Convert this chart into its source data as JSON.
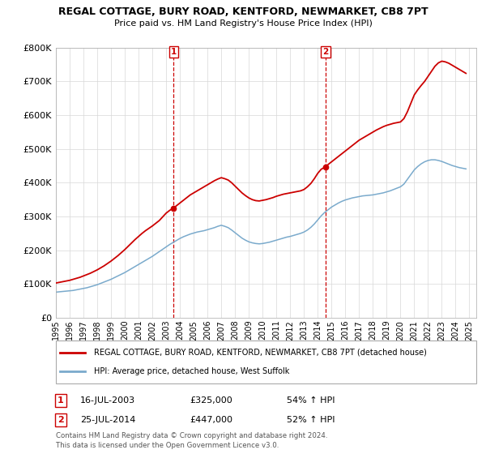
{
  "title": "REGAL COTTAGE, BURY ROAD, KENTFORD, NEWMARKET, CB8 7PT",
  "subtitle": "Price paid vs. HM Land Registry's House Price Index (HPI)",
  "legend_line1": "REGAL COTTAGE, BURY ROAD, KENTFORD, NEWMARKET, CB8 7PT (detached house)",
  "legend_line2": "HPI: Average price, detached house, West Suffolk",
  "footer1": "Contains HM Land Registry data © Crown copyright and database right 2024.",
  "footer2": "This data is licensed under the Open Government Licence v3.0.",
  "sale1_label": "1",
  "sale1_date": "16-JUL-2003",
  "sale1_price": "£325,000",
  "sale1_hpi": "54% ↑ HPI",
  "sale1_x": 2003.54,
  "sale1_y": 325000,
  "sale2_label": "2",
  "sale2_date": "25-JUL-2014",
  "sale2_price": "£447,000",
  "sale2_hpi": "52% ↑ HPI",
  "sale2_x": 2014.56,
  "sale2_y": 447000,
  "red_color": "#cc0000",
  "blue_color": "#7aaacc",
  "ylim": [
    0,
    800000
  ],
  "xlim": [
    1995.0,
    2025.5
  ],
  "yticks": [
    0,
    100000,
    200000,
    300000,
    400000,
    500000,
    600000,
    700000,
    800000
  ],
  "xticks": [
    1995,
    1996,
    1997,
    1998,
    1999,
    2000,
    2001,
    2002,
    2003,
    2004,
    2005,
    2006,
    2007,
    2008,
    2009,
    2010,
    2011,
    2012,
    2013,
    2014,
    2015,
    2016,
    2017,
    2018,
    2019,
    2020,
    2021,
    2022,
    2023,
    2024,
    2025
  ],
  "red_x": [
    1995.0,
    1995.25,
    1995.5,
    1995.75,
    1996.0,
    1996.25,
    1996.5,
    1996.75,
    1997.0,
    1997.25,
    1997.5,
    1997.75,
    1998.0,
    1998.25,
    1998.5,
    1998.75,
    1999.0,
    1999.25,
    1999.5,
    1999.75,
    2000.0,
    2000.25,
    2000.5,
    2000.75,
    2001.0,
    2001.25,
    2001.5,
    2001.75,
    2002.0,
    2002.25,
    2002.5,
    2002.75,
    2003.0,
    2003.25,
    2003.54,
    2003.75,
    2004.0,
    2004.25,
    2004.5,
    2004.75,
    2005.0,
    2005.25,
    2005.5,
    2005.75,
    2006.0,
    2006.25,
    2006.5,
    2006.75,
    2007.0,
    2007.25,
    2007.5,
    2007.75,
    2008.0,
    2008.25,
    2008.5,
    2008.75,
    2009.0,
    2009.25,
    2009.5,
    2009.75,
    2010.0,
    2010.25,
    2010.5,
    2010.75,
    2011.0,
    2011.25,
    2011.5,
    2011.75,
    2012.0,
    2012.25,
    2012.5,
    2012.75,
    2013.0,
    2013.25,
    2013.5,
    2013.75,
    2014.0,
    2014.25,
    2014.56,
    2014.75,
    2015.0,
    2015.25,
    2015.5,
    2015.75,
    2016.0,
    2016.25,
    2016.5,
    2016.75,
    2017.0,
    2017.25,
    2017.5,
    2017.75,
    2018.0,
    2018.25,
    2018.5,
    2018.75,
    2019.0,
    2019.25,
    2019.5,
    2019.75,
    2020.0,
    2020.25,
    2020.5,
    2020.75,
    2021.0,
    2021.25,
    2021.5,
    2021.75,
    2022.0,
    2022.25,
    2022.5,
    2022.75,
    2023.0,
    2023.25,
    2023.5,
    2023.75,
    2024.0,
    2024.25,
    2024.5,
    2024.75
  ],
  "red_y": [
    103000,
    105000,
    107000,
    109000,
    111000,
    114000,
    117000,
    120000,
    124000,
    128000,
    132000,
    137000,
    142000,
    148000,
    154000,
    161000,
    168000,
    176000,
    184000,
    193000,
    202000,
    212000,
    222000,
    232000,
    241000,
    250000,
    258000,
    265000,
    272000,
    280000,
    288000,
    299000,
    310000,
    318000,
    325000,
    332000,
    340000,
    348000,
    356000,
    364000,
    370000,
    376000,
    382000,
    388000,
    394000,
    400000,
    406000,
    411000,
    415000,
    412000,
    408000,
    400000,
    390000,
    380000,
    370000,
    362000,
    355000,
    350000,
    347000,
    346000,
    348000,
    350000,
    353000,
    356000,
    360000,
    363000,
    366000,
    368000,
    370000,
    372000,
    374000,
    376000,
    380000,
    388000,
    398000,
    412000,
    428000,
    440000,
    447000,
    454000,
    462000,
    470000,
    478000,
    486000,
    494000,
    502000,
    510000,
    518000,
    526000,
    532000,
    538000,
    544000,
    550000,
    556000,
    561000,
    566000,
    570000,
    573000,
    576000,
    578000,
    580000,
    590000,
    610000,
    635000,
    660000,
    675000,
    688000,
    700000,
    715000,
    730000,
    745000,
    755000,
    760000,
    758000,
    754000,
    748000,
    742000,
    736000,
    730000,
    724000
  ],
  "blue_x": [
    1995.0,
    1995.25,
    1995.5,
    1995.75,
    1996.0,
    1996.25,
    1996.5,
    1996.75,
    1997.0,
    1997.25,
    1997.5,
    1997.75,
    1998.0,
    1998.25,
    1998.5,
    1998.75,
    1999.0,
    1999.25,
    1999.5,
    1999.75,
    2000.0,
    2000.25,
    2000.5,
    2000.75,
    2001.0,
    2001.25,
    2001.5,
    2001.75,
    2002.0,
    2002.25,
    2002.5,
    2002.75,
    2003.0,
    2003.25,
    2003.5,
    2003.75,
    2004.0,
    2004.25,
    2004.5,
    2004.75,
    2005.0,
    2005.25,
    2005.5,
    2005.75,
    2006.0,
    2006.25,
    2006.5,
    2006.75,
    2007.0,
    2007.25,
    2007.5,
    2007.75,
    2008.0,
    2008.25,
    2008.5,
    2008.75,
    2009.0,
    2009.25,
    2009.5,
    2009.75,
    2010.0,
    2010.25,
    2010.5,
    2010.75,
    2011.0,
    2011.25,
    2011.5,
    2011.75,
    2012.0,
    2012.25,
    2012.5,
    2012.75,
    2013.0,
    2013.25,
    2013.5,
    2013.75,
    2014.0,
    2014.25,
    2014.5,
    2014.75,
    2015.0,
    2015.25,
    2015.5,
    2015.75,
    2016.0,
    2016.25,
    2016.5,
    2016.75,
    2017.0,
    2017.25,
    2017.5,
    2017.75,
    2018.0,
    2018.25,
    2018.5,
    2018.75,
    2019.0,
    2019.25,
    2019.5,
    2019.75,
    2020.0,
    2020.25,
    2020.5,
    2020.75,
    2021.0,
    2021.25,
    2021.5,
    2021.75,
    2022.0,
    2022.25,
    2022.5,
    2022.75,
    2023.0,
    2023.25,
    2023.5,
    2023.75,
    2024.0,
    2024.25,
    2024.5,
    2024.75
  ],
  "blue_y": [
    76000,
    77000,
    78000,
    79000,
    80000,
    81000,
    83000,
    85000,
    87000,
    89000,
    92000,
    95000,
    98000,
    102000,
    106000,
    110000,
    114000,
    119000,
    124000,
    129000,
    134000,
    140000,
    146000,
    152000,
    158000,
    164000,
    170000,
    176000,
    182000,
    189000,
    196000,
    203000,
    210000,
    217000,
    223000,
    229000,
    235000,
    240000,
    244000,
    248000,
    251000,
    254000,
    256000,
    258000,
    261000,
    264000,
    267000,
    271000,
    274000,
    271000,
    267000,
    260000,
    252000,
    244000,
    236000,
    230000,
    225000,
    222000,
    220000,
    219000,
    220000,
    222000,
    224000,
    227000,
    230000,
    233000,
    236000,
    239000,
    241000,
    244000,
    247000,
    250000,
    254000,
    260000,
    268000,
    278000,
    290000,
    302000,
    312000,
    320000,
    328000,
    334000,
    340000,
    345000,
    349000,
    352000,
    355000,
    357000,
    359000,
    361000,
    362000,
    363000,
    364000,
    366000,
    368000,
    370000,
    373000,
    376000,
    380000,
    384000,
    388000,
    396000,
    410000,
    424000,
    438000,
    448000,
    456000,
    462000,
    466000,
    468000,
    468000,
    466000,
    463000,
    459000,
    455000,
    451000,
    448000,
    445000,
    443000,
    441000
  ]
}
